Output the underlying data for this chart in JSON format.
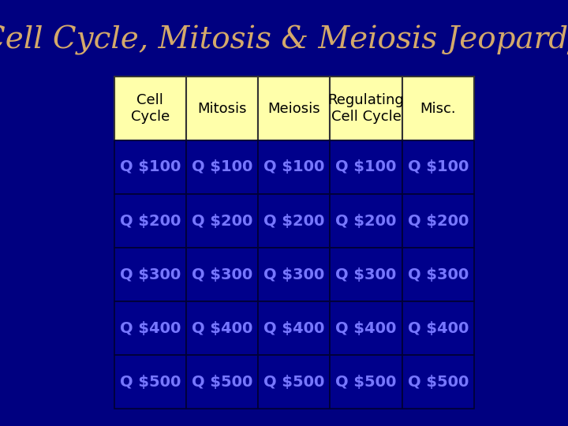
{
  "title": "Cell Cycle, Mitosis & Meiosis Jeopardy",
  "title_color": "#D4A96A",
  "title_fontsize": 28,
  "bg_color": "#000080",
  "header_bg": "#FFFFAA",
  "header_text_color": "#000000",
  "cell_bg": "#00008B",
  "cell_border_color": "#000033",
  "link_color": "#7777FF",
  "columns": [
    "Cell\nCycle",
    "Mitosis",
    "Meiosis",
    "Regulating\nCell Cycle",
    "Misc."
  ],
  "rows": [
    "Q $100",
    "Q $200",
    "Q $300",
    "Q $400",
    "Q $500"
  ],
  "header_fontsize": 13,
  "cell_fontsize": 14
}
